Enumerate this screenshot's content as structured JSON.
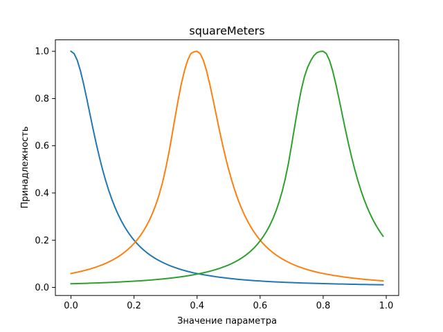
{
  "chart_data": {
    "type": "line",
    "title": "squareMeters",
    "xlabel": "Значение параметра",
    "ylabel": "Принадлежность",
    "xlim": [
      -0.0495,
      1.0395
    ],
    "ylim": [
      -0.0342,
      1.0485
    ],
    "xticks": [
      0.0,
      0.2,
      0.4,
      0.6,
      0.8,
      1.0
    ],
    "xtick_labels": [
      "0.0",
      "0.2",
      "0.4",
      "0.6",
      "0.8",
      "1.0"
    ],
    "yticks": [
      0.0,
      0.2,
      0.4,
      0.6,
      0.8,
      1.0
    ],
    "ytick_labels": [
      "0.0",
      "0.2",
      "0.4",
      "0.6",
      "0.8",
      "1.0"
    ],
    "grid": false,
    "legend": "none",
    "x_start": 0.0,
    "x_end": 0.99,
    "x_step": 0.01,
    "series": [
      {
        "color": "#1f77b4",
        "values": [
          1.0,
          0.9901,
          0.9615,
          0.9174,
          0.8621,
          0.8,
          0.7353,
          0.6711,
          0.6098,
          0.5525,
          0.5,
          0.4525,
          0.4098,
          0.3717,
          0.3378,
          0.3077,
          0.2809,
          0.2571,
          0.2358,
          0.2169,
          0.2,
          0.1848,
          0.1712,
          0.1589,
          0.1479,
          0.1379,
          0.1289,
          0.1206,
          0.1131,
          0.1063,
          0.1,
          0.0942,
          0.0889,
          0.084,
          0.0795,
          0.0753,
          0.0715,
          0.0679,
          0.0645,
          0.0614,
          0.0588,
          0.0562,
          0.0538,
          0.0515,
          0.0494,
          0.0474,
          0.0453,
          0.0434,
          0.0417,
          0.04,
          0.0385,
          0.037,
          0.0356,
          0.0342,
          0.033,
          0.0318,
          0.0307,
          0.0297,
          0.0287,
          0.0278,
          0.027,
          0.0262,
          0.0254,
          0.0247,
          0.024,
          0.0233,
          0.0227,
          0.0221,
          0.0215,
          0.0209,
          0.0204,
          0.0199,
          0.0194,
          0.0189,
          0.0185,
          0.018,
          0.0176,
          0.0172,
          0.0168,
          0.0164,
          0.0161,
          0.0157,
          0.0154,
          0.0151,
          0.0148,
          0.0145,
          0.0142,
          0.0139,
          0.0136,
          0.0133,
          0.0131,
          0.0128,
          0.0126,
          0.0124,
          0.0121,
          0.0119,
          0.0117,
          0.0115,
          0.0113,
          0.0111
        ]
      },
      {
        "color": "#ff7f0e",
        "values": [
          0.0588,
          0.0615,
          0.0643,
          0.0674,
          0.0706,
          0.0741,
          0.0779,
          0.0819,
          0.0863,
          0.091,
          0.0962,
          0.1018,
          0.1079,
          0.1146,
          0.122,
          0.1301,
          0.1391,
          0.149,
          0.1601,
          0.1724,
          0.1862,
          0.2017,
          0.2193,
          0.2392,
          0.262,
          0.2881,
          0.3183,
          0.3534,
          0.3944,
          0.4425,
          0.5,
          0.5664,
          0.641,
          0.7191,
          0.7937,
          0.8621,
          0.9174,
          0.9615,
          0.9901,
          0.9975,
          1.0,
          0.9901,
          0.9615,
          0.9174,
          0.8621,
          0.8,
          0.7353,
          0.6711,
          0.6098,
          0.5525,
          0.5,
          0.4525,
          0.4098,
          0.3717,
          0.3378,
          0.3077,
          0.2809,
          0.2571,
          0.2358,
          0.2169,
          0.2,
          0.1848,
          0.1712,
          0.1589,
          0.1479,
          0.1379,
          0.1289,
          0.1206,
          0.1131,
          0.1063,
          0.1,
          0.0942,
          0.0889,
          0.084,
          0.0795,
          0.0753,
          0.0715,
          0.0679,
          0.0645,
          0.0614,
          0.0588,
          0.0562,
          0.0538,
          0.0515,
          0.0494,
          0.0474,
          0.0453,
          0.0434,
          0.0417,
          0.04,
          0.0385,
          0.037,
          0.0356,
          0.0342,
          0.033,
          0.0318,
          0.0307,
          0.0297,
          0.0287,
          0.0278
        ]
      },
      {
        "color": "#2ca02c",
        "values": [
          0.0154,
          0.0158,
          0.0162,
          0.0166,
          0.017,
          0.0174,
          0.0179,
          0.0183,
          0.0188,
          0.0193,
          0.0198,
          0.0203,
          0.0209,
          0.0215,
          0.0221,
          0.0227,
          0.0234,
          0.0241,
          0.0248,
          0.0256,
          0.0263,
          0.0272,
          0.028,
          0.029,
          0.0299,
          0.031,
          0.032,
          0.0332,
          0.0344,
          0.0357,
          0.037,
          0.0385,
          0.04,
          0.0416,
          0.0433,
          0.0451,
          0.0471,
          0.0492,
          0.0514,
          0.0538,
          0.0563,
          0.059,
          0.0619,
          0.065,
          0.0684,
          0.072,
          0.0759,
          0.0801,
          0.0847,
          0.0897,
          0.0952,
          0.1012,
          0.1078,
          0.1151,
          0.1232,
          0.1322,
          0.1423,
          0.1536,
          0.1663,
          0.1808,
          0.197,
          0.2155,
          0.2367,
          0.2611,
          0.2895,
          0.3225,
          0.3614,
          0.4073,
          0.4619,
          0.527,
          0.6048,
          0.6851,
          0.7633,
          0.8339,
          0.89,
          0.9303,
          0.959,
          0.9808,
          0.994,
          0.999,
          1.0,
          0.9901,
          0.9615,
          0.9174,
          0.8621,
          0.8,
          0.7353,
          0.6711,
          0.6098,
          0.5525,
          0.5,
          0.4525,
          0.4098,
          0.3717,
          0.3378,
          0.3077,
          0.2809,
          0.2571,
          0.2358,
          0.2169
        ]
      }
    ]
  }
}
